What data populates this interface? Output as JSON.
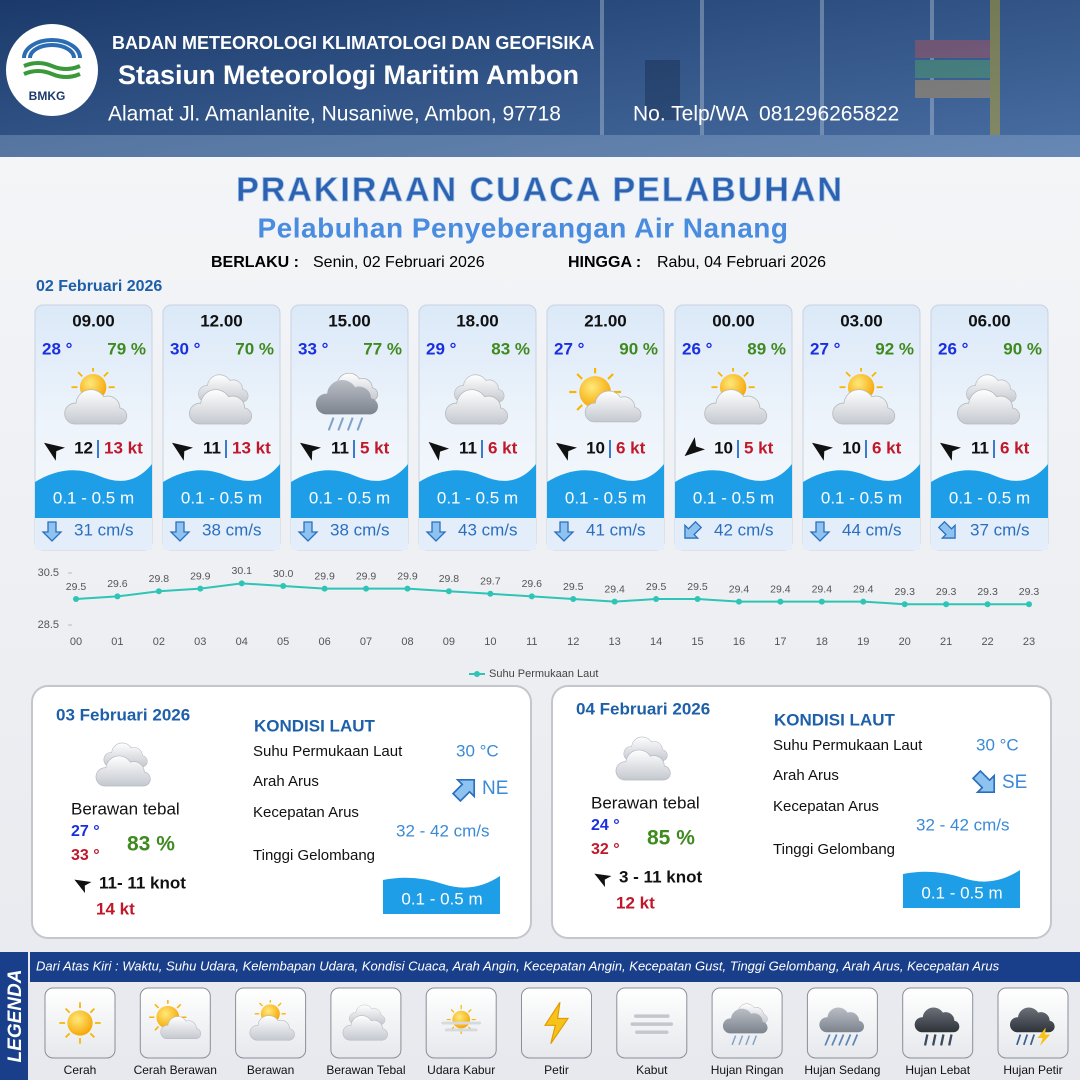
{
  "header": {
    "org": "BADAN METEOROLOGI KLIMATOLOGI DAN GEOFISIKA",
    "station": "Stasiun Meteorologi Maritim Ambon",
    "address": "Alamat Jl. Amanlanite, Nusaniwe, Ambon, 97718",
    "phone": "No. Telp/WA  081296265822",
    "logo": "BMKG"
  },
  "title": "PRAKIRAAN CUACA PELABUHAN",
  "subtitle": "Pelabuhan Penyeberangan Air Nanang",
  "validity": {
    "from_label": "BERLAKU :",
    "from": "Senin, 02 Februari 2026",
    "to_label": "HINGGA :",
    "to": "Rabu, 04 Februari 2026"
  },
  "forecast": {
    "date": "02 Februari 2026",
    "cards": [
      {
        "time": "09.00",
        "temp": "28 °",
        "humidity": "79 %",
        "wind": "12",
        "gust": "13 kt",
        "wave": "0.1 - 0.5 m",
        "current": "31 cm/s"
      },
      {
        "time": "12.00",
        "temp": "30 °",
        "humidity": "70 %",
        "wind": "11",
        "gust": "13 kt",
        "wave": "0.1 - 0.5 m",
        "current": "38 cm/s"
      },
      {
        "time": "15.00",
        "temp": "33 °",
        "humidity": "77 %",
        "wind": "11",
        "gust": "5 kt",
        "wave": "0.1 - 0.5 m",
        "current": "38 cm/s"
      },
      {
        "time": "18.00",
        "temp": "29 °",
        "humidity": "83 %",
        "wind": "11",
        "gust": "6 kt",
        "wave": "0.1 - 0.5 m",
        "current": "43 cm/s"
      },
      {
        "time": "21.00",
        "temp": "27 °",
        "humidity": "90 %",
        "wind": "10",
        "gust": "6 kt",
        "wave": "0.1 - 0.5 m",
        "current": "41 cm/s"
      },
      {
        "time": "00.00",
        "temp": "26 °",
        "humidity": "89 %",
        "wind": "10",
        "gust": "5 kt",
        "wave": "0.1 - 0.5 m",
        "current": "42 cm/s"
      },
      {
        "time": "03.00",
        "temp": "27 °",
        "humidity": "92 %",
        "wind": "10",
        "gust": "6 kt",
        "wave": "0.1 - 0.5 m",
        "current": "44 cm/s"
      },
      {
        "time": "06.00",
        "temp": "26 °",
        "humidity": "90 %",
        "wind": "11",
        "gust": "6 kt",
        "wave": "0.1 - 0.5 m",
        "current": "37 cm/s"
      }
    ]
  },
  "chart_data": {
    "type": "line",
    "categories": [
      "00",
      "01",
      "02",
      "03",
      "04",
      "05",
      "06",
      "07",
      "08",
      "09",
      "10",
      "11",
      "12",
      "13",
      "14",
      "15",
      "16",
      "17",
      "18",
      "19",
      "20",
      "21",
      "22",
      "23"
    ],
    "series": [
      {
        "name": "Suhu Permukaan Laut",
        "color": "#2ec4b6",
        "values": [
          29.5,
          29.6,
          29.8,
          29.9,
          30.1,
          30.0,
          29.9,
          29.9,
          29.9,
          29.8,
          29.7,
          29.6,
          29.5,
          29.4,
          29.5,
          29.5,
          29.4,
          29.4,
          29.4,
          29.4,
          29.3,
          29.3,
          29.3,
          29.3
        ],
        "value_labels": [
          "29.5",
          "29.6",
          "29.8",
          "29.9",
          "30.1",
          "30.0",
          "29.9",
          "29.9",
          "29.9",
          "29.8",
          "29.7",
          "29.6",
          "29.5",
          "29.4",
          "29.5",
          "29.5",
          "29.4",
          "29.4",
          "29.4",
          "29.4",
          "29.3",
          "29.3",
          "29.3",
          "29.3"
        ]
      }
    ],
    "ylim": [
      28.5,
      30.5
    ],
    "yticks": [
      28.5,
      30.5
    ]
  },
  "days": [
    {
      "date": "03 Februari 2026",
      "heading": "KONDISI LAUT",
      "weather": "Berawan tebal",
      "temp_min": "27 °",
      "temp_max": "33 °",
      "humidity": "83 %",
      "wind": "11- 11 knot",
      "gust": "14 kt",
      "sst_label": "Suhu Permukaan Laut",
      "sst": "30 °C",
      "dir_label": "Arah Arus",
      "dir": "NE",
      "speed_label": "Kecepatan Arus",
      "speed": "32 - 42 cm/s",
      "wave_label": "Tinggi Gelombang",
      "wave": "0.1 - 0.5 m"
    },
    {
      "date": "04 Februari 2026",
      "heading": "KONDISI LAUT",
      "weather": "Berawan tebal",
      "temp_min": "24 °",
      "temp_max": "32 °",
      "humidity": "85 %",
      "wind": "3 - 11 knot",
      "gust": "12 kt",
      "sst_label": "Suhu Permukaan Laut",
      "sst": "30 °C",
      "dir_label": "Arah Arus",
      "dir": "SE",
      "speed_label": "Kecepatan Arus",
      "speed": "32 - 42 cm/s",
      "wave_label": "Tinggi Gelombang",
      "wave": "0.1 - 0.5 m"
    }
  ],
  "legend": {
    "title": "LEGENDA",
    "description": "Dari Atas Kiri : Waktu, Suhu Udara, Kelembapan Udara, Kondisi Cuaca, Arah Angin, Kecepatan Angin, Kecepatan Gust, Tinggi Gelombang, Arah Arus, Kecepatan Arus",
    "items": [
      "Cerah",
      "Cerah Berawan",
      "Berawan",
      "Berawan Tebal",
      "Udara Kabur",
      "Petir",
      "Kabut",
      "Hujan Ringan",
      "Hujan Sedang",
      "Hujan Lebat",
      "Hujan Petir"
    ]
  }
}
